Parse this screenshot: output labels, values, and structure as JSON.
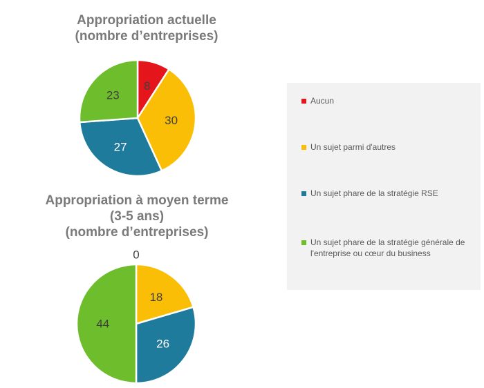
{
  "chart_data": [
    {
      "type": "pie",
      "title_lines": [
        "Appropriation actuelle",
        "(nombre d’entreprises)"
      ],
      "categories": [
        "Aucun",
        "Un sujet parmi d'autres",
        "Un sujet phare de la stratégie RSE",
        "Un sujet phare de la stratégie générale de l'entreprise ou cœur du business"
      ],
      "values": [
        8,
        30,
        27,
        23
      ],
      "labels": [
        "8",
        "30",
        "27",
        "23"
      ],
      "colors": [
        "#e4151b",
        "#fbbe06",
        "#1f7b9c",
        "#6dbd2d"
      ]
    },
    {
      "type": "pie",
      "title_lines": [
        "Appropriation à moyen terme",
        "(3-5 ans)",
        "(nombre d’entreprises)"
      ],
      "categories": [
        "Aucun",
        "Un sujet parmi d'autres",
        "Un sujet phare de la stratégie RSE",
        "Un sujet phare de la stratégie générale de l'entreprise ou cœur du business"
      ],
      "values": [
        0,
        18,
        26,
        44
      ],
      "labels": [
        "0",
        "18",
        "26",
        "44"
      ],
      "colors": [
        "#e4151b",
        "#fbbe06",
        "#1f7b9c",
        "#6dbd2d"
      ]
    }
  ],
  "legend": {
    "position": "right",
    "items": [
      {
        "label": "Aucun",
        "color": "#e4151b"
      },
      {
        "label": "Un sujet parmi d'autres",
        "color": "#fbbe06"
      },
      {
        "label": "Un sujet phare de la stratégie RSE",
        "color": "#1f7b9c"
      },
      {
        "label": "Un sujet phare de la stratégie générale de l'entreprise ou cœur du business",
        "color": "#6dbd2d"
      }
    ]
  }
}
